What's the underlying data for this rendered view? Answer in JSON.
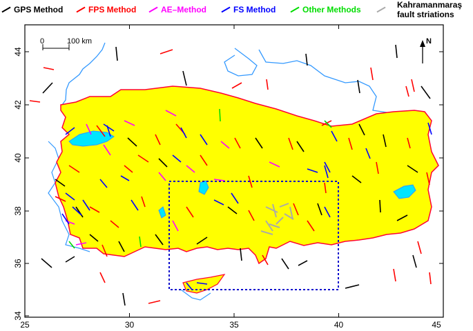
{
  "legend": {
    "items": [
      {
        "label": "GPS Method",
        "color": "#000000"
      },
      {
        "label": "FPS Method",
        "color": "#ff0000"
      },
      {
        "label": "AE–Method",
        "color": "#ff00ff"
      },
      {
        "label": "FS Method",
        "color": "#0000ff"
      },
      {
        "label": "Other Methods",
        "color": "#00dd00"
      }
    ],
    "striation": {
      "line1": "Kahramanmaraş",
      "line2": "fault striations",
      "color": "#aaaaaa"
    }
  },
  "axes": {
    "x_ticks": [
      "25",
      "30",
      "35",
      "40",
      "45"
    ],
    "y_ticks": [
      "34",
      "36",
      "38",
      "40",
      "42",
      "44"
    ]
  },
  "scale_bar": {
    "left": "0",
    "right": "100 km"
  },
  "north_arrow": "N",
  "colors": {
    "land": "#ffff00",
    "water": "#00e5ff",
    "coastline": "#3399ff",
    "border": "#ff0033",
    "study_box": "#0000cc"
  }
}
